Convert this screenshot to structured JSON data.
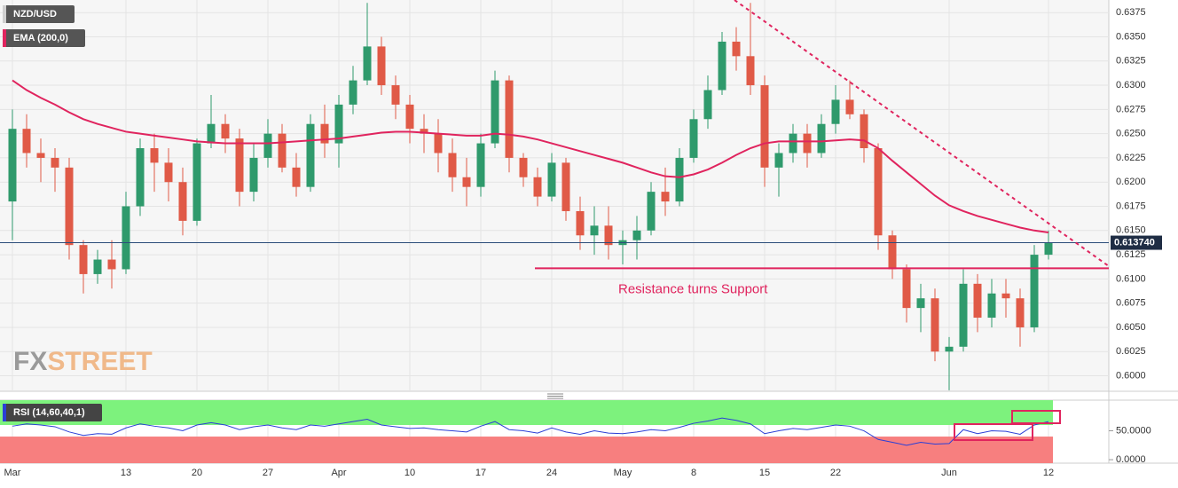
{
  "chart_data": [
    {
      "type": "candlestick",
      "name": "NZD/USD",
      "categories": [
        "Mar",
        null,
        null,
        null,
        null,
        null,
        null,
        null,
        "13",
        null,
        null,
        null,
        null,
        "20",
        null,
        null,
        null,
        null,
        "27",
        null,
        null,
        null,
        null,
        "Apr",
        null,
        null,
        null,
        null,
        "10",
        null,
        null,
        null,
        null,
        "17",
        null,
        null,
        null,
        null,
        "24",
        null,
        null,
        null,
        null,
        "May",
        null,
        null,
        null,
        null,
        "8",
        null,
        null,
        null,
        null,
        "15",
        null,
        null,
        null,
        null,
        "22",
        null,
        null,
        null,
        null,
        null,
        null,
        null,
        "Jun",
        null,
        null,
        null,
        null,
        null,
        null,
        "12"
      ],
      "open": [
        0.618,
        0.6255,
        0.623,
        0.6225,
        0.6215,
        0.6135,
        0.6105,
        0.612,
        0.611,
        0.6175,
        0.6235,
        0.622,
        0.62,
        0.616,
        0.624,
        0.626,
        0.6245,
        0.619,
        0.6225,
        0.625,
        0.6215,
        0.6195,
        0.626,
        0.624,
        0.628,
        0.6305,
        0.634,
        0.63,
        0.628,
        0.6255,
        0.625,
        0.623,
        0.6205,
        0.6195,
        0.624,
        0.6305,
        0.6225,
        0.6205,
        0.6185,
        0.622,
        0.617,
        0.6145,
        0.6155,
        0.6135,
        0.614,
        0.615,
        0.619,
        0.618,
        0.6225,
        0.6265,
        0.6295,
        0.6345,
        0.633,
        0.63,
        0.6215,
        0.623,
        0.625,
        0.623,
        0.626,
        0.6285,
        0.627,
        0.6235,
        0.6145,
        0.611,
        0.607,
        0.608,
        0.6025,
        0.603,
        0.6095,
        0.606,
        0.6085,
        0.608,
        0.605,
        0.6125
      ],
      "high": [
        0.6275,
        0.627,
        0.6245,
        0.6235,
        0.6225,
        0.614,
        0.613,
        0.614,
        0.619,
        0.6245,
        0.625,
        0.6235,
        0.6215,
        0.6245,
        0.629,
        0.627,
        0.6255,
        0.624,
        0.6265,
        0.626,
        0.623,
        0.627,
        0.628,
        0.629,
        0.632,
        0.6385,
        0.635,
        0.631,
        0.629,
        0.627,
        0.6265,
        0.6245,
        0.6225,
        0.625,
        0.6315,
        0.631,
        0.623,
        0.6215,
        0.623,
        0.6225,
        0.6185,
        0.6175,
        0.6175,
        0.615,
        0.6165,
        0.62,
        0.6215,
        0.6235,
        0.6275,
        0.631,
        0.6355,
        0.636,
        0.6385,
        0.631,
        0.624,
        0.626,
        0.626,
        0.627,
        0.63,
        0.6305,
        0.6275,
        0.624,
        0.615,
        0.6115,
        0.6095,
        0.609,
        0.604,
        0.611,
        0.6105,
        0.61,
        0.61,
        0.609,
        0.6135,
        0.615
      ],
      "low": [
        0.614,
        0.6215,
        0.62,
        0.619,
        0.612,
        0.6085,
        0.6095,
        0.609,
        0.6105,
        0.6165,
        0.619,
        0.618,
        0.6145,
        0.6155,
        0.6235,
        0.623,
        0.6175,
        0.618,
        0.6215,
        0.621,
        0.6185,
        0.619,
        0.6225,
        0.6215,
        0.627,
        0.63,
        0.629,
        0.6265,
        0.624,
        0.623,
        0.621,
        0.619,
        0.6175,
        0.6185,
        0.6235,
        0.621,
        0.6195,
        0.6175,
        0.618,
        0.616,
        0.613,
        0.6125,
        0.612,
        0.6115,
        0.612,
        0.6145,
        0.6165,
        0.6175,
        0.622,
        0.6255,
        0.629,
        0.6315,
        0.629,
        0.6195,
        0.6185,
        0.622,
        0.6215,
        0.6225,
        0.625,
        0.6265,
        0.622,
        0.613,
        0.61,
        0.6055,
        0.6045,
        0.6015,
        0.5985,
        0.6025,
        0.6045,
        0.605,
        0.606,
        0.603,
        0.6045,
        0.612
      ],
      "close": [
        0.6255,
        0.623,
        0.6225,
        0.6215,
        0.6135,
        0.6105,
        0.612,
        0.611,
        0.6175,
        0.6235,
        0.622,
        0.62,
        0.616,
        0.624,
        0.626,
        0.6245,
        0.619,
        0.6225,
        0.625,
        0.6215,
        0.6195,
        0.626,
        0.624,
        0.628,
        0.6305,
        0.634,
        0.63,
        0.628,
        0.6255,
        0.625,
        0.623,
        0.6205,
        0.6195,
        0.624,
        0.6305,
        0.6225,
        0.6205,
        0.6185,
        0.622,
        0.617,
        0.6145,
        0.6155,
        0.6135,
        0.614,
        0.615,
        0.619,
        0.618,
        0.6225,
        0.6265,
        0.6295,
        0.6345,
        0.633,
        0.63,
        0.6215,
        0.623,
        0.625,
        0.623,
        0.626,
        0.6285,
        0.627,
        0.6235,
        0.6145,
        0.611,
        0.607,
        0.608,
        0.6025,
        0.603,
        0.6095,
        0.606,
        0.6085,
        0.608,
        0.605,
        0.6125,
        0.6137
      ],
      "up_color": "#2f9a6c",
      "down_color": "#e05a47",
      "ema": {
        "name": "EMA (200,0)",
        "color": "#e0245e",
        "values": [
          0.6305,
          0.6295,
          0.6287,
          0.628,
          0.6272,
          0.6265,
          0.626,
          0.6256,
          0.6252,
          0.625,
          0.6248,
          0.6246,
          0.6244,
          0.6242,
          0.6241,
          0.624,
          0.624,
          0.624,
          0.624,
          0.6241,
          0.6242,
          0.6243,
          0.6244,
          0.6245,
          0.6247,
          0.6249,
          0.6251,
          0.6252,
          0.6252,
          0.6251,
          0.625,
          0.6249,
          0.6248,
          0.6248,
          0.625,
          0.6249,
          0.6247,
          0.6244,
          0.624,
          0.6236,
          0.6232,
          0.6228,
          0.6224,
          0.622,
          0.6215,
          0.621,
          0.6206,
          0.6205,
          0.6208,
          0.6213,
          0.622,
          0.6228,
          0.6235,
          0.624,
          0.6242,
          0.6242,
          0.6242,
          0.6242,
          0.6243,
          0.6244,
          0.6243,
          0.6235,
          0.6222,
          0.621,
          0.6198,
          0.6186,
          0.6176,
          0.617,
          0.6165,
          0.6161,
          0.6157,
          0.6153,
          0.615,
          0.6148
        ]
      },
      "ylim": [
        0.5984,
        0.6388
      ],
      "yticks": [
        {
          "value": 0.6,
          "label": "0.6000"
        },
        0.6025,
        {
          "value": 0.605,
          "label": "0.6050"
        },
        0.6075,
        {
          "value": 0.61,
          "label": "0.6100"
        },
        0.6125,
        {
          "value": 0.615,
          "label": "0.6150"
        },
        0.6175,
        {
          "value": 0.62,
          "label": "0.6200"
        },
        0.6225,
        {
          "value": 0.625,
          "label": "0.6250"
        },
        0.6275,
        {
          "value": 0.63,
          "label": "0.6300"
        },
        0.6325,
        {
          "value": 0.635,
          "label": "0.6350"
        },
        0.6375
      ],
      "last_price": {
        "value": 0.61374,
        "label": "0.613740"
      },
      "support_level": 0.6111,
      "annotation": "Resistance turns Support",
      "grid": true
    },
    {
      "type": "line",
      "series": [
        {
          "name": "RSI (14,60,40,1)",
          "color": "#2b3fd6",
          "values": [
            58,
            62,
            60,
            57,
            48,
            42,
            45,
            44,
            55,
            62,
            58,
            55,
            50,
            60,
            64,
            60,
            52,
            57,
            60,
            55,
            52,
            60,
            58,
            62,
            66,
            70,
            60,
            57,
            54,
            55,
            52,
            50,
            48,
            58,
            66,
            52,
            50,
            46,
            55,
            48,
            44,
            50,
            46,
            45,
            48,
            52,
            50,
            56,
            63,
            67,
            72,
            68,
            62,
            45,
            50,
            54,
            52,
            56,
            60,
            58,
            50,
            35,
            30,
            25,
            30,
            27,
            28,
            52,
            45,
            50,
            49,
            44,
            60,
            66
          ]
        }
      ],
      "upper_band": 60,
      "lower_band": 40,
      "ylim": [
        -6,
        103
      ],
      "yticks": [
        {
          "value": 0,
          "label": "0.0000"
        },
        {
          "value": 50,
          "label": "50.0000"
        }
      ]
    }
  ],
  "logo": {
    "left": "FX",
    "right": "STREET"
  }
}
